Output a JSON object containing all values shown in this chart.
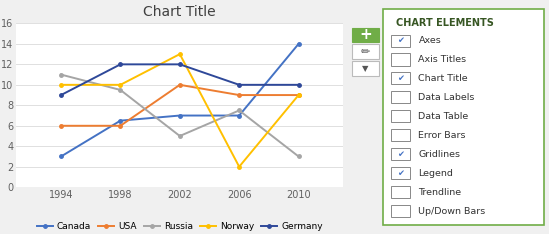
{
  "years": [
    1994,
    1998,
    2002,
    2006,
    2010
  ],
  "series_order": [
    "Canada",
    "USA",
    "Russia",
    "Norway",
    "Germany"
  ],
  "series": {
    "Canada": {
      "values": [
        3,
        6.5,
        7,
        7,
        14
      ],
      "color": "#4472C4"
    },
    "USA": {
      "values": [
        6,
        6,
        10,
        9,
        9
      ],
      "color": "#ED7D31"
    },
    "Russia": {
      "values": [
        11,
        9.5,
        5,
        7.5,
        3
      ],
      "color": "#A5A5A5"
    },
    "Norway": {
      "values": [
        10,
        10,
        13,
        2,
        9
      ],
      "color": "#FFC000"
    },
    "Germany": {
      "values": [
        9,
        12,
        12,
        10,
        10
      ],
      "color": "#2E4899"
    }
  },
  "title": "Chart Title",
  "ylim": [
    0,
    16
  ],
  "yticks": [
    0,
    2,
    4,
    6,
    8,
    10,
    12,
    14,
    16
  ],
  "xticks": [
    1994,
    1998,
    2002,
    2006,
    2010
  ],
  "chart_elements": [
    {
      "label": "Axes",
      "checked": true
    },
    {
      "label": "Axis Titles",
      "checked": false
    },
    {
      "label": "Chart Title",
      "checked": true
    },
    {
      "label": "Data Labels",
      "checked": false
    },
    {
      "label": "Data Table",
      "checked": false
    },
    {
      "label": "Error Bars",
      "checked": false
    },
    {
      "label": "Gridlines",
      "checked": true
    },
    {
      "label": "Legend",
      "checked": true
    },
    {
      "label": "Trendline",
      "checked": false
    },
    {
      "label": "Up/Down Bars",
      "checked": false
    }
  ],
  "outer_bg": "#F0F0F0",
  "chart_bg": "#FFFFFF",
  "grid_color": "#E0E0E0",
  "panel_border": "#70AD47",
  "panel_header_color": "#375623",
  "check_color": "#4472C4",
  "plus_bg": "#70AD47",
  "icon_border": "#BBBBBB"
}
